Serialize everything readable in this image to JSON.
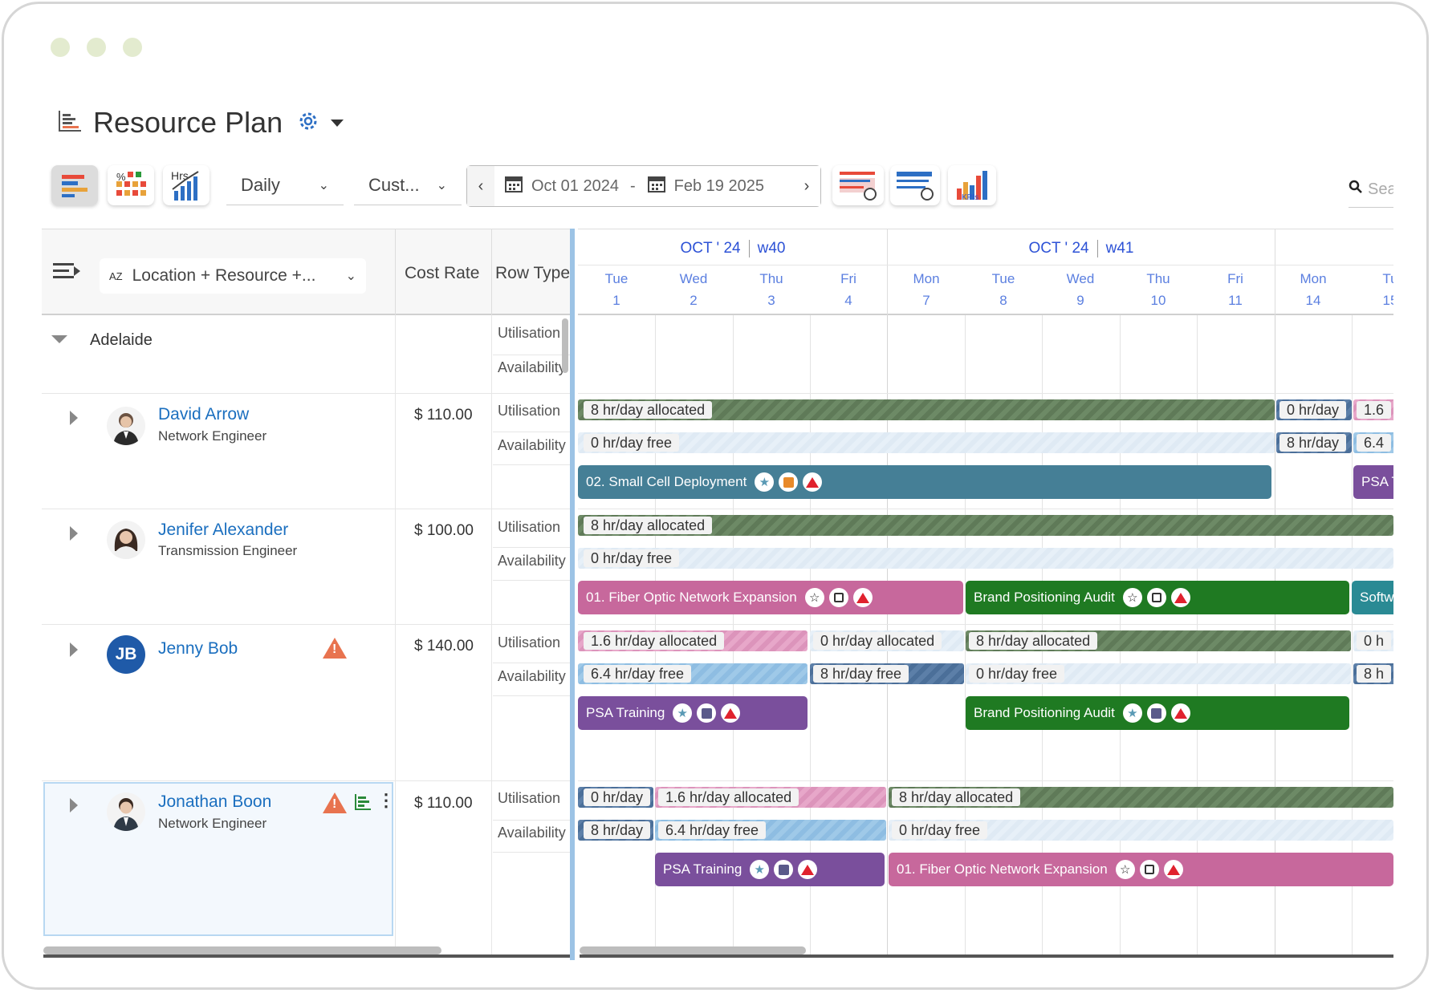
{
  "window": {
    "title": "Resource Plan"
  },
  "toolbar": {
    "view_mode": "Daily",
    "filter_mode": "Cust...",
    "start_date": "Oct 01 2024",
    "date_sep": "-",
    "end_date": "Feb 19 2025",
    "prev_icon": "‹",
    "next_icon": "›",
    "search_placeholder": "Sea",
    "hrs_label": "Hrs",
    "pct_label": "%",
    "kpi_label": "KPIs"
  },
  "grid": {
    "group_select": "Location + Resource +...",
    "az_label": "AZ",
    "col_cost": "Cost Rate",
    "col_rowtype": "Row Type",
    "weeks": [
      {
        "month": "OCT ' 24",
        "week": "w40"
      },
      {
        "month": "OCT ' 24",
        "week": "w41"
      }
    ],
    "days": [
      {
        "dow": "Tue",
        "num": "1"
      },
      {
        "dow": "Wed",
        "num": "2"
      },
      {
        "dow": "Thu",
        "num": "3"
      },
      {
        "dow": "Fri",
        "num": "4"
      },
      {
        "dow": "Mon",
        "num": "7"
      },
      {
        "dow": "Tue",
        "num": "8"
      },
      {
        "dow": "Wed",
        "num": "9"
      },
      {
        "dow": "Thu",
        "num": "10"
      },
      {
        "dow": "Fri",
        "num": "11"
      },
      {
        "dow": "Mon",
        "num": "14"
      },
      {
        "dow": "Tu",
        "num": "15"
      }
    ]
  },
  "groups": [
    {
      "name": "Adelaide",
      "row_types": [
        "Utilisation",
        "Availability"
      ]
    }
  ],
  "resources": [
    {
      "name": "David Arrow",
      "role": "Network Engineer",
      "cost": "$ 110.00",
      "initials": "",
      "util": [
        {
          "label": "8 hr/day allocated"
        },
        {
          "label": "0 hr/day"
        },
        {
          "label": "1.6"
        }
      ],
      "avail": [
        {
          "label": "0 hr/day free"
        },
        {
          "label": "8 hr/day"
        },
        {
          "label": "6.4"
        }
      ],
      "tasks": [
        {
          "label": "02. Small Cell Deployment"
        },
        {
          "label": "PSA T"
        }
      ]
    },
    {
      "name": "Jenifer Alexander",
      "role": "Transmission Engineer",
      "cost": "$ 100.00",
      "initials": "",
      "util": [
        {
          "label": "8 hr/day allocated"
        }
      ],
      "avail": [
        {
          "label": "0 hr/day free"
        }
      ],
      "tasks": [
        {
          "label": "01. Fiber Optic Network Expansion"
        },
        {
          "label": "Brand Positioning Audit"
        },
        {
          "label": "Softw"
        }
      ]
    },
    {
      "name": "Jenny Bob",
      "role": "",
      "cost": "$ 140.00",
      "initials": "JB",
      "util": [
        {
          "label": "1.6 hr/day allocated"
        },
        {
          "label": "0 hr/day allocated"
        },
        {
          "label": "8 hr/day allocated"
        },
        {
          "label": "0 h"
        }
      ],
      "avail": [
        {
          "label": "6.4 hr/day free"
        },
        {
          "label": "8 hr/day free"
        },
        {
          "label": "0 hr/day free"
        },
        {
          "label": "8 h"
        }
      ],
      "tasks": [
        {
          "label": "PSA Training"
        },
        {
          "label": "Brand Positioning Audit"
        }
      ]
    },
    {
      "name": "Jonathan Boon",
      "role": "Network Engineer",
      "cost": "$ 110.00",
      "initials": "",
      "util": [
        {
          "label": "0 hr/day"
        },
        {
          "label": "1.6 hr/day allocated"
        },
        {
          "label": "8 hr/day allocated"
        }
      ],
      "avail": [
        {
          "label": "8 hr/day"
        },
        {
          "label": "6.4 hr/day free"
        },
        {
          "label": "0 hr/day free"
        }
      ],
      "tasks": [
        {
          "label": "PSA Training"
        },
        {
          "label": "01. Fiber Optic Network Expansion"
        }
      ]
    }
  ],
  "row_types": {
    "util": "Utilisation",
    "avail": "Availability"
  },
  "colors": {
    "accent": "#2d52d6",
    "green_task": "#1f7a22",
    "teal_task": "#457f96",
    "pink_task": "#c7689c",
    "purple_task": "#7a4f9c"
  },
  "icons": [
    "gear-icon",
    "chevron-down-icon",
    "calendar-icon",
    "search-icon",
    "star-icon",
    "square-icon",
    "warning-triangle-icon",
    "caret-right-icon",
    "caret-down-icon"
  ]
}
